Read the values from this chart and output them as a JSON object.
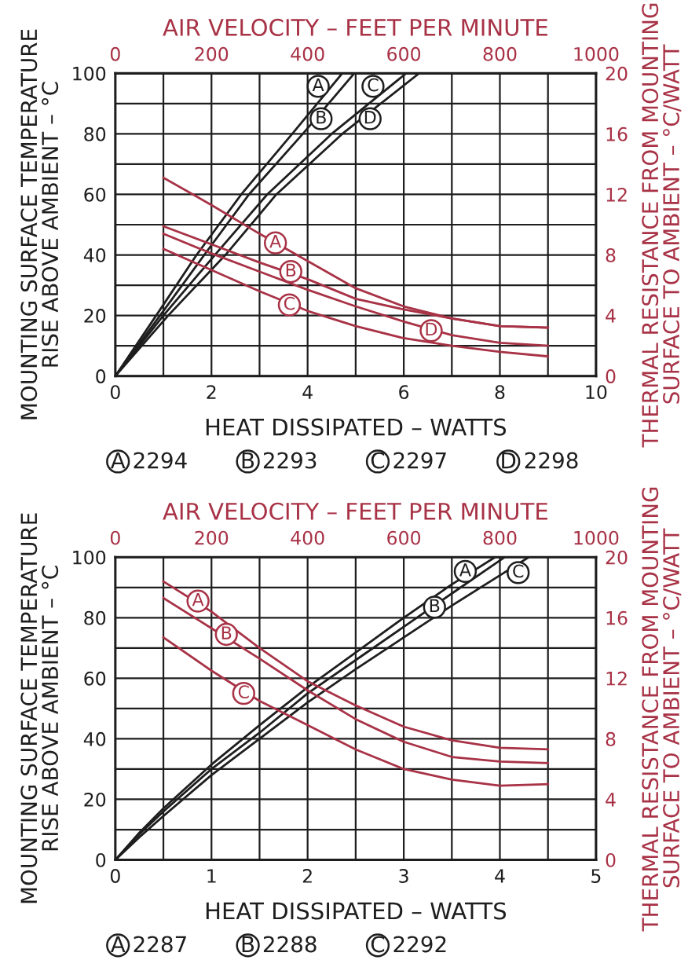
{
  "chart_data": [
    {
      "type": "line",
      "xlabel": "HEAT DISSIPATED – WATTS",
      "ylabel": "MOUNTING SURFACE TEMPERATURE\nRISE ABOVE AMBIENT – °C",
      "xlim": [
        0,
        10
      ],
      "xticks": [
        0,
        {
          "value": 1,
          "label": null
        },
        2,
        {
          "value": 3,
          "label": null
        },
        4,
        {
          "value": 5,
          "label": null
        },
        6,
        {
          "value": 7,
          "label": null
        },
        8,
        {
          "value": 9,
          "label": null
        },
        10
      ],
      "ylim": [
        0,
        100
      ],
      "yticks": [
        0,
        {
          "value": 10,
          "label": null
        },
        20,
        {
          "value": 30,
          "label": null
        },
        40,
        {
          "value": 50,
          "label": null
        },
        60,
        {
          "value": 70,
          "label": null
        },
        80,
        {
          "value": 90,
          "label": null
        },
        100
      ],
      "grid": true,
      "series": [
        {
          "color": "#1e1e1e",
          "x": [
            0,
            0.85,
            1.69,
            2.62,
            3.68,
            4.72
          ],
          "values": [
            0,
            20,
            40,
            60,
            80,
            100
          ]
        },
        {
          "color": "#1e1e1e",
          "x": [
            0,
            0.93,
            1.85,
            2.78,
            3.9,
            4.97
          ],
          "values": [
            0,
            20,
            40,
            60,
            80,
            100
          ]
        },
        {
          "color": "#1e1e1e",
          "x": [
            0,
            1.0,
            2.07,
            3.16,
            4.5,
            6.05
          ],
          "values": [
            0,
            20,
            40,
            60,
            80,
            100
          ]
        },
        {
          "color": "#1e1e1e",
          "x": [
            0,
            1.1,
            2.29,
            3.35,
            4.72,
            6.32
          ],
          "values": [
            0,
            20,
            40,
            60,
            80,
            100
          ]
        }
      ],
      "annotations": [
        {
          "text": "A",
          "x": 4.22,
          "y": 95.7
        },
        {
          "text": "B",
          "x": 4.28,
          "y": 85
        },
        {
          "text": "C",
          "x": 5.36,
          "y": 95.7
        },
        {
          "text": "D",
          "x": 5.3,
          "y": 85
        },
        "A 2294",
        "B 2293",
        "C 2297",
        "D 2298"
      ]
    },
    {
      "type": "line",
      "xlabel": "AIR VELOCITY – FEET PER MINUTE",
      "ylabel": "THERMAL RESISTANCE FROM MOUNTING\nSURFACE TO AMBIENT – °C/WATT",
      "xlim": [
        0,
        1000
      ],
      "xticks": [
        0,
        200,
        400,
        600,
        800,
        1000
      ],
      "ylim": [
        0,
        20
      ],
      "yticks": [
        0,
        4,
        8,
        12,
        16,
        20
      ],
      "series": [
        {
          "color": "#a83246",
          "x": [
            100,
            200,
            300,
            400,
            500,
            600,
            700,
            800,
            900
          ],
          "values": [
            13.1,
            11.3,
            9.4,
            7.6,
            5.8,
            4.6,
            3.8,
            3.3,
            3.2
          ]
        },
        {
          "color": "#a83246",
          "x": [
            100,
            200,
            300,
            400,
            500,
            600,
            700,
            800,
            900
          ],
          "values": [
            9.9,
            8.7,
            7.5,
            6.4,
            5.1,
            4.4,
            3.8,
            3.3,
            3.2
          ]
        },
        {
          "color": "#a83246",
          "x": [
            100,
            200,
            300,
            400,
            500,
            600,
            700,
            800,
            900
          ],
          "values": [
            8.4,
            7.0,
            5.6,
            4.3,
            3.3,
            2.5,
            2.0,
            1.6,
            1.3
          ]
        },
        {
          "color": "#a83246",
          "x": [
            100,
            200,
            300,
            400,
            500,
            600,
            700,
            800,
            900
          ],
          "values": [
            9.4,
            8.1,
            6.9,
            5.7,
            4.6,
            3.6,
            2.7,
            2.2,
            2.0
          ]
        }
      ],
      "annotations": [
        {
          "text": "A",
          "x": 333,
          "y": 8.8
        },
        {
          "text": "B",
          "x": 365,
          "y": 6.9
        },
        {
          "text": "C",
          "x": 362,
          "y": 4.7
        },
        {
          "text": "D",
          "x": 657,
          "y": 3.0
        }
      ]
    },
    {
      "type": "line",
      "xlabel": "HEAT DISSIPATED – WATTS",
      "ylabel": "MOUNTING SURFACE TEMPERATURE\nRISE ABOVE AMBIENT – °C",
      "xlim": [
        0,
        5
      ],
      "xticks": [
        0,
        {
          "value": 0.5,
          "label": null
        },
        1,
        {
          "value": 1.5,
          "label": null
        },
        2,
        {
          "value": 2.5,
          "label": null
        },
        3,
        {
          "value": 3.5,
          "label": null
        },
        4,
        {
          "value": 4.5,
          "label": null
        },
        5
      ],
      "ylim": [
        0,
        100
      ],
      "yticks": [
        0,
        {
          "value": 10,
          "label": null
        },
        20,
        {
          "value": 30,
          "label": null
        },
        40,
        {
          "value": 50,
          "label": null
        },
        60,
        {
          "value": 70,
          "label": null
        },
        80,
        {
          "value": 90,
          "label": null
        },
        100
      ],
      "grid": true,
      "series": [
        {
          "color": "#1e1e1e",
          "x": [
            0,
            0.25,
            0.5,
            1,
            1.5,
            2,
            2.5,
            3,
            3.5,
            3.95
          ],
          "values": [
            0,
            9,
            17,
            31.5,
            44.5,
            57,
            68.5,
            80,
            91,
            100
          ]
        },
        {
          "color": "#1e1e1e",
          "x": [
            0,
            0.25,
            0.5,
            1,
            1.5,
            2,
            2.5,
            3,
            3.5,
            4.05
          ],
          "values": [
            0,
            8.5,
            16,
            30,
            42,
            55,
            66,
            77,
            88,
            100
          ]
        },
        {
          "color": "#1e1e1e",
          "x": [
            0,
            0.25,
            0.5,
            1,
            1.5,
            2,
            2.5,
            3,
            3.5,
            4,
            4.3
          ],
          "values": [
            0,
            7.5,
            14.5,
            28,
            40,
            52,
            63,
            73.5,
            84,
            94,
            100
          ]
        }
      ],
      "annotations": [
        {
          "text": "A",
          "x": 3.64,
          "y": 95.3
        },
        {
          "text": "B",
          "x": 3.32,
          "y": 83.5
        },
        {
          "text": "C",
          "x": 4.19,
          "y": 94.9
        },
        "A 2287",
        "B 2288",
        "C 2292"
      ]
    },
    {
      "type": "line",
      "xlabel": "AIR VELOCITY – FEET PER MINUTE",
      "ylabel": "THERMAL RESISTANCE FROM MOUNTING\nSURFACE TO AMBIENT – °C/WATT",
      "xlim": [
        0,
        1000
      ],
      "xticks": [
        0,
        200,
        400,
        600,
        800,
        1000
      ],
      "ylim": [
        0,
        20
      ],
      "yticks": [
        0,
        4,
        8,
        12,
        16,
        20
      ],
      "series": [
        {
          "color": "#a83246",
          "x": [
            100,
            200,
            300,
            400,
            500,
            600,
            700,
            800,
            900
          ],
          "values": [
            18.4,
            16.4,
            14.0,
            11.8,
            10.2,
            8.8,
            7.9,
            7.4,
            7.3
          ]
        },
        {
          "color": "#a83246",
          "x": [
            100,
            200,
            300,
            400,
            500,
            600,
            700,
            800,
            900
          ],
          "values": [
            17.3,
            15.3,
            13.3,
            11.2,
            9.3,
            7.8,
            6.8,
            6.5,
            6.4
          ]
        },
        {
          "color": "#a83246",
          "x": [
            100,
            200,
            300,
            400,
            500,
            600,
            700,
            800,
            900
          ],
          "values": [
            14.7,
            12.5,
            10.5,
            8.9,
            7.3,
            6.0,
            5.3,
            4.9,
            5.0
          ]
        }
      ],
      "annotations": [
        {
          "text": "A",
          "x": 172,
          "y": 17.1
        },
        {
          "text": "B",
          "x": 231,
          "y": 14.9
        },
        {
          "text": "C",
          "x": 267,
          "y": 11.0
        }
      ]
    }
  ]
}
